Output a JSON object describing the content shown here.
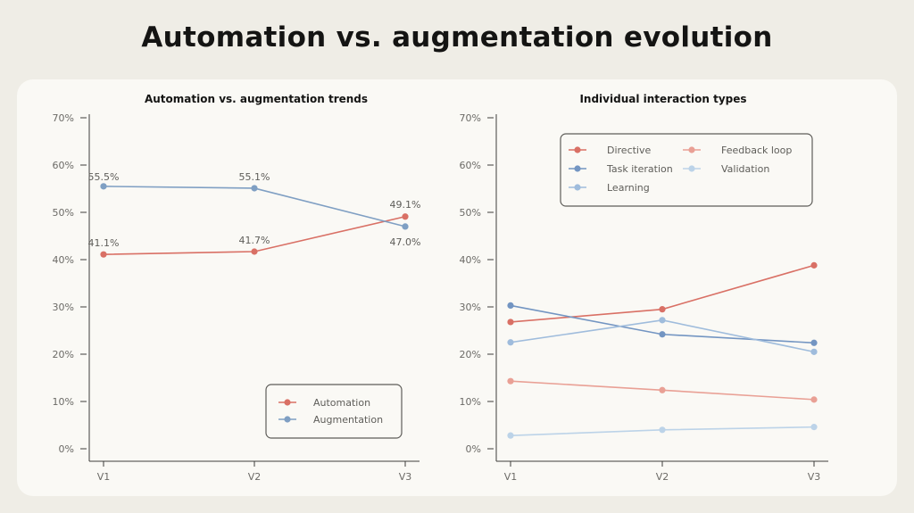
{
  "page": {
    "title": "Automation vs. augmentation evolution"
  },
  "chart_data": [
    {
      "type": "line",
      "title": "Automation vs. augmentation trends",
      "xlabel": "",
      "ylabel": "",
      "categories": [
        "V1",
        "V2",
        "V3"
      ],
      "ylim": [
        0,
        70
      ],
      "yticks": [
        "0%",
        "10%",
        "20%",
        "30%",
        "40%",
        "50%",
        "60%",
        "70%"
      ],
      "grid": false,
      "legend_position": "bottom-right",
      "series": [
        {
          "name": "Automation",
          "color": "#d97065",
          "values": [
            41.1,
            41.7,
            49.1
          ],
          "labels": [
            "41.1%",
            "41.7%",
            "49.1%"
          ]
        },
        {
          "name": "Augmentation",
          "color": "#7f9fc3",
          "values": [
            55.5,
            55.1,
            47.0
          ],
          "labels": [
            "55.5%",
            "55.1%",
            "47.0%"
          ]
        }
      ]
    },
    {
      "type": "line",
      "title": "Individual interaction types",
      "xlabel": "",
      "ylabel": "",
      "categories": [
        "V1",
        "V2",
        "V3"
      ],
      "ylim": [
        0,
        70
      ],
      "yticks": [
        "0%",
        "10%",
        "20%",
        "30%",
        "40%",
        "50%",
        "60%",
        "70%"
      ],
      "grid": false,
      "legend_position": "top-center",
      "series": [
        {
          "name": "Directive",
          "color": "#d97065",
          "values": [
            26.8,
            29.5,
            38.8
          ]
        },
        {
          "name": "Feedback loop",
          "color": "#e9a095",
          "values": [
            14.3,
            12.4,
            10.4
          ]
        },
        {
          "name": "Task iteration",
          "color": "#7395c2",
          "values": [
            30.3,
            24.2,
            22.4
          ]
        },
        {
          "name": "Validation",
          "color": "#bcd3e8",
          "values": [
            2.8,
            4.0,
            4.6
          ]
        },
        {
          "name": "Learning",
          "color": "#9fbcdc",
          "values": [
            22.5,
            27.2,
            20.5
          ]
        }
      ]
    }
  ]
}
